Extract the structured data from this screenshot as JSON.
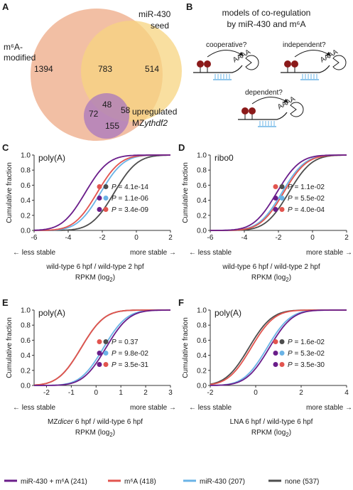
{
  "colors": {
    "both": "#6a1d8a",
    "m6a": "#e2544e",
    "mir": "#6ab3e6",
    "none": "#4d4d4d",
    "venn_m6a": "#f1b89a",
    "venn_mir": "#f7d480",
    "venn_ythdf": "#a877bf"
  },
  "panel_a": {
    "letter": "A",
    "m6a_label": "m⁶A-\nmodified",
    "m6a_line1": "m⁶A-",
    "m6a_line2": "modified",
    "mir_line1": "miR-430",
    "mir_line2": "seed",
    "ythdf_line1": "upregulated",
    "ythdf_line2_prefix": "MZ",
    "ythdf_line2_italic": "ythdf2",
    "counts": {
      "m6a_only": "1394",
      "m6a_mir": "783",
      "mir_only": "514",
      "all3": "48",
      "mir_ythdf": "58",
      "m6a_ythdf": "72",
      "ythdf_only": "155"
    }
  },
  "panel_b": {
    "letter": "B",
    "title_line1": "models of co-regulation",
    "title_line2": "by miR-430 and m⁶A",
    "model1": "cooperative?",
    "model2": "independent?",
    "model3": "dependent?",
    "tail": "AAAA"
  },
  "axes_common": {
    "ylabel": "Cumulative fraction",
    "yticks": [
      "0.0",
      "0.2",
      "0.4",
      "0.6",
      "0.8",
      "1.0"
    ],
    "less": "← less stable",
    "more": "more stable →",
    "rpkm": "RPKM (log",
    "sub2": "2",
    "close": ")"
  },
  "panels": [
    {
      "letter": "C",
      "tag": "poly(A)",
      "xlabel": "wild-type 6 hpf / wild-type 2 hpf",
      "xlim": [
        -6,
        2
      ],
      "xticks": [
        "-6",
        "-4",
        "-2",
        "0",
        "2"
      ],
      "pvals": [
        {
          "c1": "m6a",
          "c2": "none",
          "p": "4.1e-14"
        },
        {
          "c1": "both",
          "c2": "mir",
          "p": "1.1e-06"
        },
        {
          "c1": "both",
          "c2": "m6a",
          "p": "3.4e-09"
        }
      ],
      "chart_data": {
        "type": "line",
        "medians": {
          "both": -3.0,
          "m6a": -2.3,
          "mir": -2.1,
          "none": -1.3
        }
      }
    },
    {
      "letter": "D",
      "tag": "ribo0",
      "xlabel": "wild-type 6 hpf / wild-type 2 hpf",
      "xlim": [
        -6,
        2
      ],
      "xticks": [
        "-6",
        "-4",
        "-2",
        "0",
        "2"
      ],
      "pvals": [
        {
          "c1": "m6a",
          "c2": "none",
          "p": "1.1e-02"
        },
        {
          "c1": "both",
          "c2": "mir",
          "p": "5.5e-02"
        },
        {
          "c1": "both",
          "c2": "m6a",
          "p": "4.0e-04"
        }
      ],
      "chart_data": {
        "type": "line",
        "medians": {
          "both": -2.1,
          "m6a": -1.7,
          "mir": -1.8,
          "none": -1.4
        }
      }
    },
    {
      "letter": "E",
      "tag": "poly(A)",
      "xlabel_prefix": "MZ",
      "xlabel_italic": "dicer",
      "xlabel_suffix": " 6 hpf / wild-type 6 hpf",
      "xlim": [
        -2.5,
        3
      ],
      "xticks": [
        "-2",
        "-1",
        "0",
        "1",
        "2",
        "3"
      ],
      "pvals": [
        {
          "c1": "m6a",
          "c2": "none",
          "p": "0.37"
        },
        {
          "c1": "both",
          "c2": "mir",
          "p": "9.8e-02"
        },
        {
          "c1": "both",
          "c2": "m6a",
          "p": "3.5e-31"
        }
      ],
      "chart_data": {
        "type": "line",
        "medians": {
          "both": 0.4,
          "m6a": -0.6,
          "mir": 0.3,
          "none": -0.6
        }
      }
    },
    {
      "letter": "F",
      "tag": "poly(A)",
      "xlabel": "LNA 6 hpf / wild-type 6 hpf",
      "xlim": [
        -2,
        4
      ],
      "xticks": [
        "-2",
        "0",
        "2",
        "4"
      ],
      "pvals": [
        {
          "c1": "m6a",
          "c2": "none",
          "p": "1.6e-02"
        },
        {
          "c1": "both",
          "c2": "mir",
          "p": "5.3e-02"
        },
        {
          "c1": "both",
          "c2": "m6a",
          "p": "3.5e-30"
        }
      ],
      "chart_data": {
        "type": "line",
        "medians": {
          "both": 0.6,
          "m6a": -0.2,
          "mir": 0.5,
          "none": -0.3
        }
      }
    }
  ],
  "legend": [
    {
      "key": "both",
      "label": "miR-430 + m⁶A (241)"
    },
    {
      "key": "m6a",
      "label": "m⁶A (418)"
    },
    {
      "key": "mir",
      "label": "miR-430 (207)"
    },
    {
      "key": "none",
      "label": "none (537)"
    }
  ]
}
